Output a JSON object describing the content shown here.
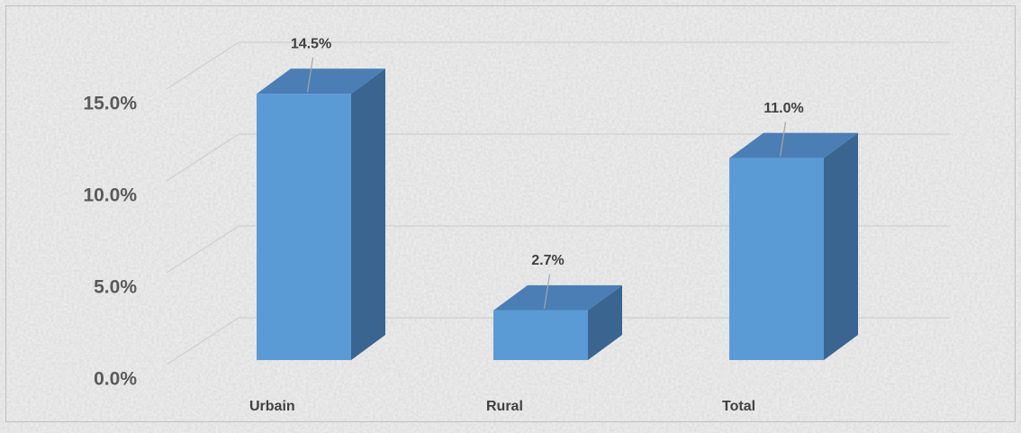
{
  "chart_data": {
    "type": "bar3d",
    "categories": [
      "Urbain",
      "Rural",
      "Total"
    ],
    "values": [
      14.5,
      2.7,
      11.0
    ],
    "value_labels": [
      "14.5%",
      "2.7%",
      "11.0%"
    ],
    "color": "#5b9bd5",
    "ylim": [
      0,
      15
    ],
    "yticks": [
      {
        "value": 0,
        "label": "0.0%"
      },
      {
        "value": 5,
        "label": "5.0%"
      },
      {
        "value": 10,
        "label": "10.0%"
      },
      {
        "value": 15,
        "label": "15.0%"
      }
    ],
    "grid": true
  }
}
